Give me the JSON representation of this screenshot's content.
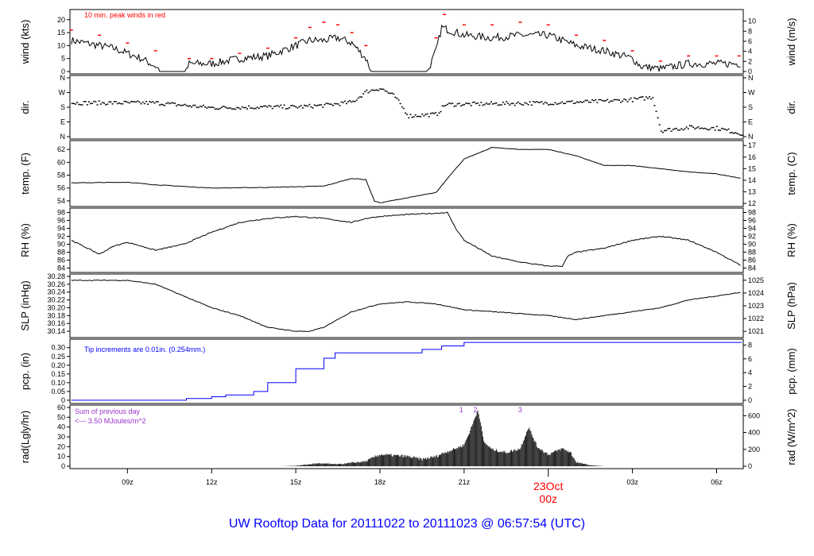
{
  "title": "UW Rooftop Data for 20111022  to  20111023 @ 06:57:54  (UTC)",
  "chart_data": {
    "type": "line",
    "x_unit": "hours UTC since 20111022 00z",
    "xlim": [
      6.95,
      30.95
    ],
    "x_ticks": [
      {
        "h": 9,
        "label": "09z"
      },
      {
        "h": 12,
        "label": "12z"
      },
      {
        "h": 15,
        "label": "15z"
      },
      {
        "h": 18,
        "label": "18z"
      },
      {
        "h": 21,
        "label": "21z"
      },
      {
        "h": 27,
        "label": "03z"
      },
      {
        "h": 30,
        "label": "06z"
      }
    ],
    "day_tick": {
      "h": 24,
      "label1": "23Oct",
      "label2": "00z"
    },
    "panels": [
      {
        "id": "wind",
        "ylabel": "wind (kts)",
        "ylabel_right": "wind (m/s)",
        "ylim": [
          0,
          23
        ],
        "ticks": [
          0,
          5,
          10,
          15,
          20
        ],
        "right_ylim": [
          0,
          11.83
        ],
        "right_ticks": [
          0,
          2,
          4,
          6,
          8,
          10
        ],
        "annotation": "10 min. peak winds in red",
        "style": "line",
        "x": [
          7,
          7.5,
          8,
          8.5,
          9,
          9.5,
          10,
          10.2,
          11.1,
          11.2,
          12,
          13,
          14,
          15,
          15.5,
          16,
          16.5,
          17,
          17.5,
          17.7,
          19.7,
          20,
          20.2,
          21,
          22,
          23,
          24,
          25,
          26,
          27,
          27.3,
          28,
          29,
          30,
          30.9
        ],
        "y": [
          12,
          11,
          10,
          9,
          7,
          5,
          2,
          0,
          0,
          3,
          3,
          5,
          6,
          10,
          12,
          12,
          13,
          11,
          5,
          0,
          0,
          8,
          17,
          14,
          13,
          14,
          14,
          10,
          8,
          5,
          2,
          1,
          3,
          3,
          3
        ],
        "peaks": {
          "x": [
            7,
            8,
            9,
            10,
            11.2,
            12,
            13,
            14,
            15,
            15.5,
            16,
            16.5,
            17,
            17.5,
            20,
            20.3,
            21,
            22,
            23,
            24,
            25,
            26,
            27,
            28,
            29,
            30,
            30.8
          ],
          "y": [
            16,
            14,
            11,
            8,
            5,
            5,
            7,
            9,
            13,
            17,
            19,
            18,
            15,
            10,
            13,
            22,
            18,
            18,
            19,
            18,
            14,
            12,
            8,
            4,
            6,
            6,
            6
          ]
        }
      },
      {
        "id": "dir",
        "ylabel": "dir.",
        "ylabel_right": "dir.",
        "ylim": [
          0,
          360
        ],
        "tick_values": [
          0,
          90,
          180,
          270,
          360
        ],
        "tick_labels": [
          "N",
          "E",
          "S",
          "W",
          "N"
        ],
        "style": "dots",
        "x": [
          7,
          10,
          11,
          12,
          14,
          15,
          16,
          17,
          17.5,
          18,
          18.5,
          19,
          20,
          20.3,
          22,
          24,
          26,
          27,
          27.7,
          28,
          29,
          30,
          30.9
        ],
        "y": [
          210,
          210,
          195,
          180,
          185,
          185,
          195,
          215,
          280,
          300,
          250,
          130,
          140,
          200,
          205,
          210,
          220,
          230,
          245,
          40,
          60,
          55,
          20
        ]
      },
      {
        "id": "temp",
        "ylabel": "temp. (F)",
        "ylabel_right": "temp. (C)",
        "ylim": [
          53.5,
          63
        ],
        "ticks": [
          54,
          56,
          58,
          60,
          62
        ],
        "right_ylim": [
          11.94,
          17.22
        ],
        "right_ticks": [
          12,
          13,
          14,
          15,
          16,
          17
        ],
        "style": "line",
        "x": [
          7,
          9,
          10,
          12,
          14,
          16,
          17,
          17.5,
          17.8,
          18,
          19,
          20,
          20.5,
          21,
          22,
          23,
          24,
          25,
          26,
          27,
          28,
          29,
          30,
          30.9
        ],
        "y": [
          56.8,
          56.9,
          56.5,
          56,
          56.1,
          56.3,
          57.5,
          57.3,
          54,
          53.7,
          54.5,
          55.3,
          58,
          60.5,
          62.3,
          62,
          62,
          61,
          59.5,
          59.5,
          59,
          58.5,
          58.2,
          57.5
        ]
      },
      {
        "id": "rh",
        "ylabel": "RH (%)",
        "ylabel_right": "RH (%)",
        "ylim": [
          83.5,
          98.5
        ],
        "ticks": [
          84,
          86,
          88,
          90,
          92,
          94,
          96,
          98
        ],
        "right_ticks": [
          84,
          86,
          88,
          90,
          92,
          94,
          96,
          98
        ],
        "style": "line",
        "x": [
          7,
          8,
          8.5,
          9,
          10,
          11,
          12,
          13,
          14,
          15,
          16,
          17,
          17.5,
          18,
          19,
          20,
          20.4,
          20.7,
          21,
          22,
          23,
          24,
          24.5,
          24.7,
          25,
          26,
          27,
          28,
          29,
          30,
          30.9
        ],
        "y": [
          91,
          87.5,
          89.5,
          90.5,
          88.5,
          90,
          93,
          95.5,
          96.5,
          97,
          96.5,
          95.5,
          96.5,
          97,
          97.5,
          97.8,
          98,
          94,
          91,
          87,
          85.5,
          84.5,
          84.5,
          87,
          88,
          89,
          91,
          92,
          91,
          88,
          84.5
        ]
      },
      {
        "id": "slp",
        "ylabel": "SLP (inHg)",
        "ylabel_right": "SLP (hPa)",
        "ylim": [
          30.13,
          30.28
        ],
        "ticks": [
          30.14,
          30.16,
          30.18,
          30.2,
          30.22,
          30.24,
          30.26,
          30.28
        ],
        "right_ylim": [
          1020.7,
          1025.3
        ],
        "right_ticks": [
          1021,
          1022,
          1023,
          1024,
          1025
        ],
        "style": "line",
        "x": [
          7,
          9,
          10,
          11,
          12,
          13,
          14,
          15,
          15.5,
          16,
          17,
          18,
          19,
          20,
          21,
          22,
          23,
          24,
          25,
          26,
          27,
          28,
          29,
          30,
          30.9
        ],
        "y": [
          30.27,
          30.27,
          30.26,
          30.23,
          30.2,
          30.18,
          30.15,
          30.14,
          30.14,
          30.15,
          30.19,
          30.21,
          30.215,
          30.21,
          30.195,
          30.19,
          30.185,
          30.18,
          30.17,
          30.18,
          30.19,
          30.2,
          30.22,
          30.23,
          30.24
        ]
      },
      {
        "id": "pcp",
        "ylabel": "pcp. (in)",
        "ylabel_right": "pcp. (mm)",
        "ylim": [
          -0.005,
          0.335
        ],
        "ticks": [
          0,
          0.05,
          0.1,
          0.15,
          0.2,
          0.25,
          0.3
        ],
        "right_ylim": [
          -0.127,
          8.51
        ],
        "right_ticks": [
          0,
          2,
          4,
          6,
          8
        ],
        "annotation": "Tip increments are 0.01in. (0.254mm.)",
        "style": "step",
        "color": "#0000ff",
        "x": [
          7,
          11,
          11.1,
          12,
          12.5,
          13.5,
          14,
          15,
          16,
          16.4,
          17,
          19,
          19.5,
          20.2,
          21,
          30.9
        ],
        "y": [
          0,
          0,
          0.01,
          0.02,
          0.03,
          0.05,
          0.1,
          0.18,
          0.24,
          0.27,
          0.27,
          0.27,
          0.29,
          0.31,
          0.33,
          0.33
        ]
      },
      {
        "id": "rad",
        "ylabel": "rad(Lgly/hr)",
        "ylabel_right": "rad (W/m^2)",
        "ylim": [
          0,
          60
        ],
        "ticks": [
          0,
          10,
          20,
          30,
          40,
          50,
          60
        ],
        "right_ylim": [
          0,
          697.8
        ],
        "right_ticks": [
          0,
          200,
          400,
          600
        ],
        "annotation1": "Sum of previous day",
        "annotation2": "<--- 3.50 MJoules/m^2",
        "markers": [
          {
            "h": 20.9,
            "label": "1"
          },
          {
            "h": 21.4,
            "label": "2"
          },
          {
            "h": 23.0,
            "label": "3"
          }
        ],
        "style": "area",
        "x": [
          7,
          14.5,
          15,
          15.8,
          16.5,
          17.5,
          18,
          19,
          19.5,
          20,
          20.3,
          20.7,
          21,
          21.2,
          21.5,
          21.7,
          22,
          22.5,
          23,
          23.3,
          23.6,
          24,
          24.5,
          24.8,
          25,
          25.5,
          26,
          30.9
        ],
        "y": [
          0,
          0,
          0.5,
          3,
          2,
          5,
          12,
          10,
          7,
          10,
          14,
          18,
          22,
          35,
          58,
          25,
          17,
          14,
          18,
          40,
          20,
          12,
          18,
          14,
          4,
          1,
          0,
          0
        ]
      }
    ]
  }
}
